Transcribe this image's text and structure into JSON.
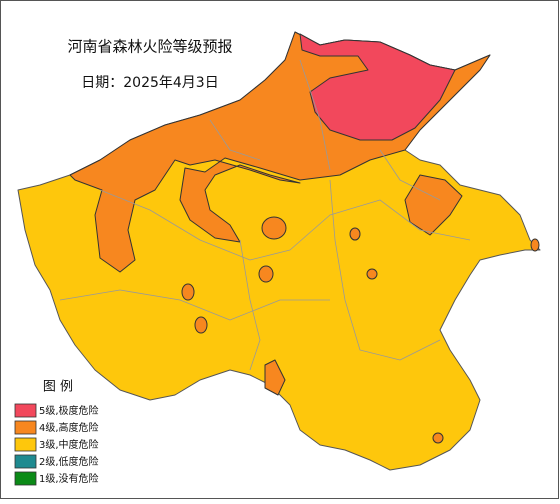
{
  "title": "河南省森林火险等级预报",
  "date": "日期：2025年4月3日",
  "legend": {
    "title": "图 例",
    "items": [
      {
        "label": "5级,极度危险",
        "color": "#f2485c"
      },
      {
        "label": "4级,高度危险",
        "color": "#f7871f"
      },
      {
        "label": "3级,中度危险",
        "color": "#fec70c"
      },
      {
        "label": "2级,低度危险",
        "color": "#1f8a90"
      },
      {
        "label": "1级,没有危险",
        "color": "#0b8a17"
      }
    ]
  }
}
